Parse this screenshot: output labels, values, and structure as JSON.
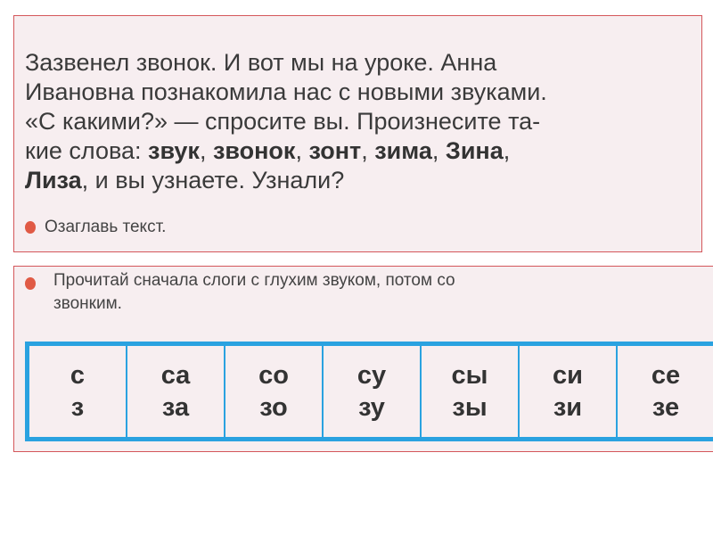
{
  "text_block": {
    "lines": [
      [
        "Зазвенел звонок. И вот мы на уроке. Анна"
      ],
      [
        "Ивановна познакомила нас с новыми звуками."
      ],
      [
        "«С какими?» — спросите вы. Произнесите та-"
      ]
    ],
    "line4": {
      "prefix": "кие слова: ",
      "w1": "звук",
      "w2": "звонок",
      "w3": "зонт",
      "w4": "зима",
      "w5": "Зина",
      "sep": ", "
    },
    "line5": {
      "w1": "Лиза",
      "rest": ", и вы узнаете. Узнали?"
    },
    "task": "Озаглавь текст."
  },
  "exercise": {
    "instruction_line1": "Прочитай сначала слоги с глухим звуком, потом со",
    "instruction_line2": "звонким.",
    "syllables": [
      {
        "top": "с",
        "bottom": "з"
      },
      {
        "top": "са",
        "bottom": "за"
      },
      {
        "top": "со",
        "bottom": "зо"
      },
      {
        "top": "су",
        "bottom": "зу"
      },
      {
        "top": "сы",
        "bottom": "зы"
      },
      {
        "top": "си",
        "bottom": "зи"
      },
      {
        "top": "се",
        "bottom": "зе"
      }
    ]
  },
  "colors": {
    "frame": "#d4575b",
    "table_border": "#2aa2e0",
    "bullet": "#e05a45",
    "paper": "#f7eef0"
  }
}
